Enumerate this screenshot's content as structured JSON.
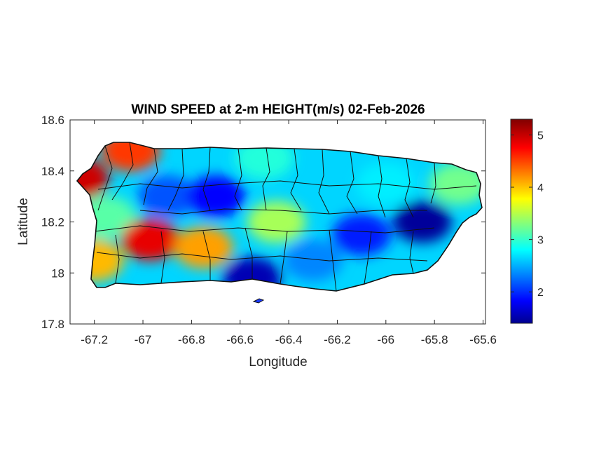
{
  "chart_data": {
    "type": "heatmap",
    "title": "WIND SPEED at 2-m HEIGHT(m/s) 02-Feb-2026",
    "xlabel": "Longitude",
    "ylabel": "Latitude",
    "xlim": [
      -67.3,
      -65.59
    ],
    "ylim": [
      17.8,
      18.6
    ],
    "xticks": [
      -67.2,
      -67,
      -66.8,
      -66.6,
      -66.4,
      -66.2,
      -66,
      -65.8,
      -65.6
    ],
    "xtick_labels": [
      "-67.2",
      "-67",
      "-66.8",
      "-66.6",
      "-66.4",
      "-66.2",
      "-66",
      "-65.8",
      "-65.6"
    ],
    "yticks": [
      17.8,
      18,
      18.2,
      18.4,
      18.6
    ],
    "ytick_labels": [
      "17.8",
      "18",
      "18.2",
      "18.4",
      "18.6"
    ],
    "colorbar": {
      "colormap": "jet",
      "range": [
        1.4,
        5.3
      ],
      "ticks": [
        2,
        3,
        4,
        5
      ],
      "tick_labels": [
        "2",
        "3",
        "4",
        "5"
      ]
    },
    "field_samples": [
      {
        "lon": -67.26,
        "lat": 18.37,
        "value": 5.0
      },
      {
        "lon": -67.2,
        "lat": 18.05,
        "value": 4.1
      },
      {
        "lon": -67.15,
        "lat": 18.22,
        "value": 3.2
      },
      {
        "lon": -67.05,
        "lat": 18.48,
        "value": 4.6
      },
      {
        "lon": -66.97,
        "lat": 18.13,
        "value": 4.9
      },
      {
        "lon": -66.9,
        "lat": 18.3,
        "value": 2.2
      },
      {
        "lon": -66.75,
        "lat": 18.1,
        "value": 4.2
      },
      {
        "lon": -66.7,
        "lat": 18.3,
        "value": 1.9
      },
      {
        "lon": -66.55,
        "lat": 17.98,
        "value": 1.6
      },
      {
        "lon": -66.5,
        "lat": 18.45,
        "value": 3.0
      },
      {
        "lon": -66.45,
        "lat": 18.2,
        "value": 3.5
      },
      {
        "lon": -66.3,
        "lat": 18.05,
        "value": 2.4
      },
      {
        "lon": -66.1,
        "lat": 18.15,
        "value": 2.0
      },
      {
        "lon": -66.0,
        "lat": 18.35,
        "value": 2.8
      },
      {
        "lon": -65.85,
        "lat": 18.2,
        "value": 1.5
      },
      {
        "lon": -65.7,
        "lat": 18.35,
        "value": 3.3
      }
    ]
  },
  "colors": {
    "axes": "#262626",
    "outline": "#111111",
    "background": "#ffffff"
  }
}
